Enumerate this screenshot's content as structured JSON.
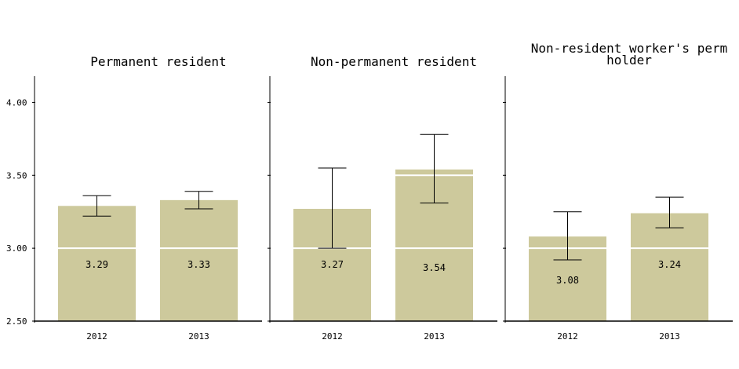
{
  "chart_data": {
    "type": "bar",
    "layout": "faceted panels",
    "y_ticks": [
      "2.50",
      "3.00",
      "3.50",
      "4.00"
    ],
    "ylim": [
      2.5,
      4.18
    ],
    "colors": {
      "bar": "#cdc99c",
      "error_bar": "#000000",
      "axis": "#000000"
    },
    "panels": [
      {
        "title_lines": [
          "Permanent resident"
        ],
        "categories": [
          "2012",
          "2013"
        ],
        "values": [
          3.29,
          3.33
        ],
        "value_labels": [
          "3.29",
          "3.33"
        ],
        "error_low": [
          3.22,
          3.27
        ],
        "error_high": [
          3.36,
          3.39
        ]
      },
      {
        "title_lines": [
          "Non-permanent resident"
        ],
        "categories": [
          "2012",
          "2013"
        ],
        "values": [
          3.27,
          3.54
        ],
        "value_labels": [
          "3.27",
          "3.54"
        ],
        "error_low": [
          3.0,
          3.31
        ],
        "error_high": [
          3.55,
          3.78
        ]
      },
      {
        "title_lines": [
          "Non-resident worker's perm",
          "holder"
        ],
        "categories": [
          "2012",
          "2013"
        ],
        "values": [
          3.08,
          3.24
        ],
        "value_labels": [
          "3.08",
          "3.24"
        ],
        "error_low": [
          2.92,
          3.14
        ],
        "error_high": [
          3.25,
          3.35
        ]
      }
    ]
  }
}
